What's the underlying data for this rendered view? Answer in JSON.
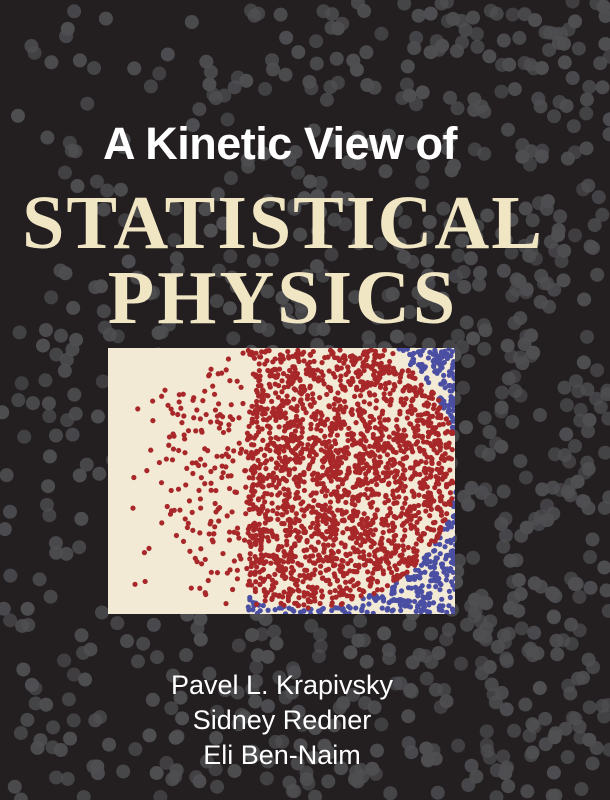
{
  "cover": {
    "title_line1": "A Kinetic View of",
    "title_line2": "STATISTICAL",
    "title_line3": "PHYSICS",
    "authors": [
      "Pavel L. Krapivsky",
      "Sidney Redner",
      "Eli Ben-Naim"
    ]
  },
  "colors": {
    "background": "#231f20",
    "background_dots": "#4f4f52",
    "title_accent": "#f1e6c4",
    "panel_background": "#f3ead6",
    "red_particles": "#a8282a",
    "blue_particles": "#4b4fa3"
  }
}
